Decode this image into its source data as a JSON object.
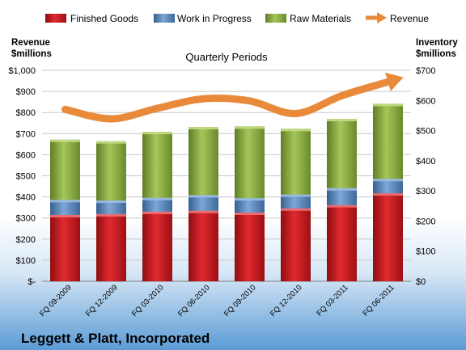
{
  "chart_data": {
    "type": "bar",
    "stacked": true,
    "title": "Quarterly Periods",
    "footer_title": "Leggett & Platt, Incorporated",
    "left_axis": {
      "label_line1": "Revenue",
      "label_line2": "$millions",
      "range": [
        0,
        1000
      ],
      "ticks": [
        "$-",
        "$100",
        "$200",
        "$300",
        "$400",
        "$500",
        "$600",
        "$700",
        "$800",
        "$900",
        "$1,000"
      ]
    },
    "right_axis": {
      "label_line1": "Inventory",
      "label_line2": "$millions",
      "range": [
        0,
        700
      ],
      "ticks": [
        "$0",
        "$100",
        "$200",
        "$300",
        "$400",
        "$500",
        "$600",
        "$700"
      ]
    },
    "categories": [
      "FQ 09-2009",
      "FQ 12-2009",
      "FQ 03-2010",
      "FQ 06-2010",
      "FQ 09-2010",
      "FQ 12-2010",
      "FQ 03-2011",
      "FQ 06-2011"
    ],
    "series": [
      {
        "name": "Finished Goods",
        "axis": "right",
        "color": "#c8151b",
        "values": [
          220,
          223,
          231,
          234,
          228,
          242,
          253,
          292
        ]
      },
      {
        "name": "Work in Progress",
        "axis": "right",
        "color": "#4f81bd",
        "values": [
          50,
          45,
          46,
          52,
          48,
          46,
          56,
          48
        ]
      },
      {
        "name": "Raw Materials",
        "axis": "right",
        "color": "#8aab3e",
        "values": [
          200,
          197,
          219,
          226,
          238,
          218,
          230,
          249
        ]
      },
      {
        "name": "Revenue",
        "axis": "left",
        "type": "line",
        "color": "#e88a3a",
        "values": [
          815,
          770,
          820,
          865,
          855,
          795,
          880,
          945
        ]
      }
    ],
    "grid": true,
    "legend_position": "top"
  }
}
